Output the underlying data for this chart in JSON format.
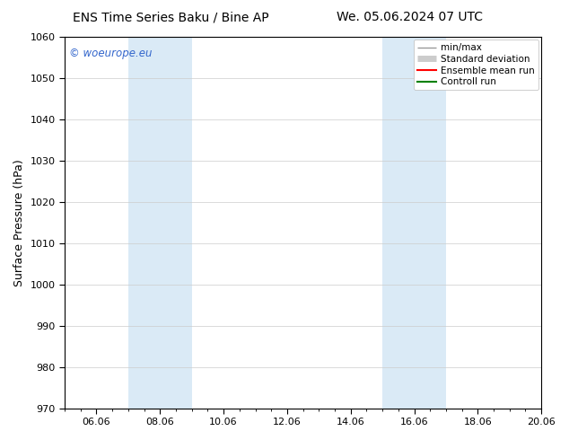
{
  "title_left": "ENS Time Series Baku / Bine AP",
  "title_right": "We. 05.06.2024 07 UTC",
  "ylabel": "Surface Pressure (hPa)",
  "ylim": [
    970,
    1060
  ],
  "yticks": [
    970,
    980,
    990,
    1000,
    1010,
    1020,
    1030,
    1040,
    1050,
    1060
  ],
  "xlim": [
    0,
    15
  ],
  "xtick_labels": [
    "06.06",
    "08.06",
    "10.06",
    "12.06",
    "14.06",
    "16.06",
    "18.06",
    "20.06"
  ],
  "xtick_positions": [
    1,
    3,
    5,
    7,
    9,
    11,
    13,
    15
  ],
  "shaded_bands": [
    {
      "x_start": 2,
      "x_end": 4
    },
    {
      "x_start": 10,
      "x_end": 12
    }
  ],
  "shaded_color": "#daeaf6",
  "watermark": "© woeurope.eu",
  "watermark_color": "#3366cc",
  "legend_entries": [
    {
      "label": "min/max",
      "color": "#999999",
      "lw": 1.0
    },
    {
      "label": "Standard deviation",
      "color": "#cccccc",
      "lw": 5
    },
    {
      "label": "Ensemble mean run",
      "color": "#ff0000",
      "lw": 1.5
    },
    {
      "label": "Controll run",
      "color": "#008000",
      "lw": 1.5
    }
  ],
  "bg_color": "#ffffff",
  "grid_color": "#cccccc",
  "title_fontsize": 10,
  "tick_fontsize": 8,
  "ylabel_fontsize": 9,
  "legend_fontsize": 7.5
}
